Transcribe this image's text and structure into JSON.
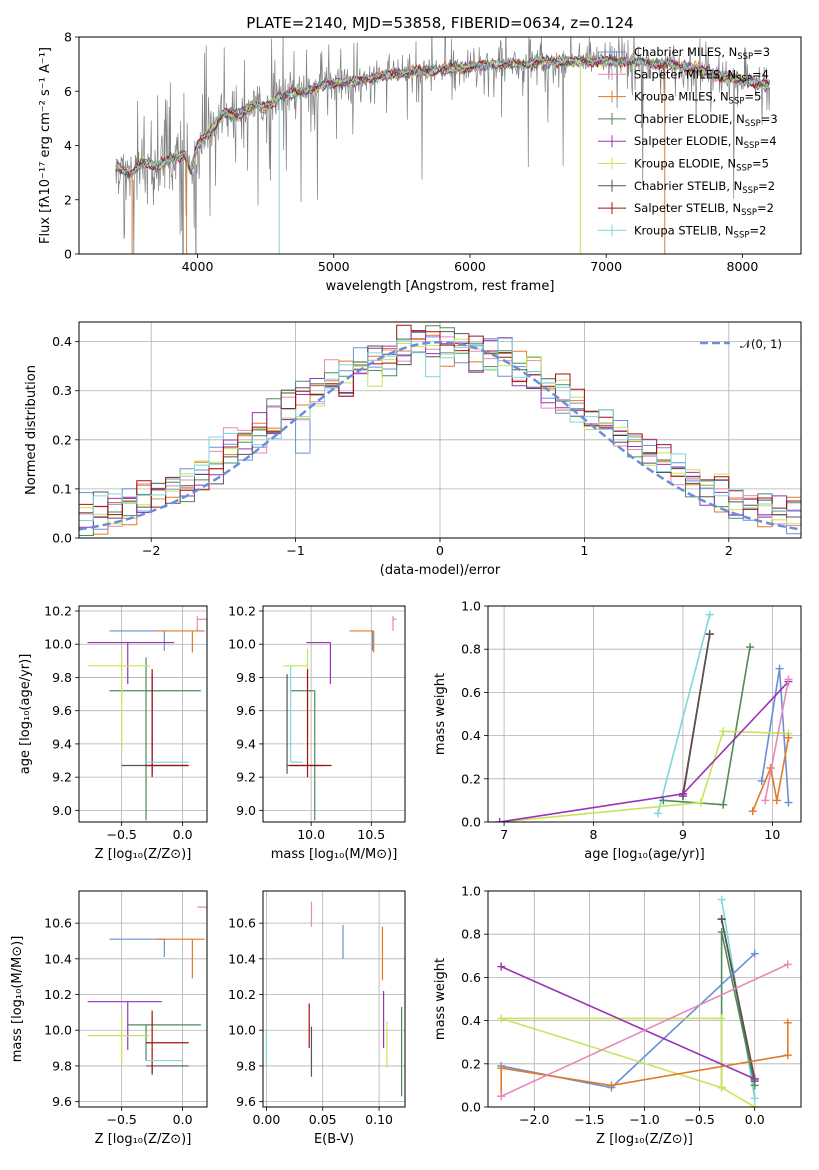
{
  "figure": {
    "title": "PLATE=2140, MJD=53858, FIBERID=0634, z=0.124"
  },
  "colors": {
    "gray": "#808080",
    "blue": "#6a8fd8",
    "orange": "#e07a2a",
    "green": "#4f8a5c",
    "purple": "#9932b8",
    "yellowgreen": "#c9e45a",
    "darkgray": "#555555",
    "darkred": "#a01010",
    "cyan": "#7fd6dc",
    "pink": "#e889b8"
  },
  "chart_data": [
    {
      "id": "spectrum",
      "type": "line",
      "xlabel": "wavelength [Angstrom, rest frame]",
      "ylabel": "Flux [fλ10⁻¹⁷ erg cm⁻² s⁻¹ A⁻¹]",
      "xlim": [
        3130,
        8430
      ],
      "ylim": [
        0,
        8
      ],
      "xticks": [
        "4000",
        "5000",
        "6000",
        "7000",
        "8000"
      ],
      "yticks": [
        "0",
        "2",
        "4",
        "6",
        "8"
      ],
      "legend_position": "top-right",
      "legend": [
        {
          "label": "Chabrier MILES, N",
          "sub": "SSP",
          "suffix": "=3",
          "color": "#6a8fd8"
        },
        {
          "label": "Salpeter MILES, N",
          "sub": "SSP",
          "suffix": "=4",
          "color": "#e889b8"
        },
        {
          "label": "Kroupa MILES, N",
          "sub": "SSP",
          "suffix": "=5",
          "color": "#e07a2a"
        },
        {
          "label": "Chabrier ELODIE, N",
          "sub": "SSP",
          "suffix": "=3",
          "color": "#4f8a5c"
        },
        {
          "label": "Salpeter ELODIE, N",
          "sub": "SSP",
          "suffix": "=4",
          "color": "#9932b8"
        },
        {
          "label": "Kroupa ELODIE, N",
          "sub": "SSP",
          "suffix": "=5",
          "color": "#c9e45a"
        },
        {
          "label": "Chabrier STELIB, N",
          "sub": "SSP",
          "suffix": "=2",
          "color": "#555555"
        },
        {
          "label": "Salpeter STELIB, N",
          "sub": "SSP",
          "suffix": "=2",
          "color": "#a01010"
        },
        {
          "label": "Kroupa STELIB, N",
          "sub": "SSP",
          "suffix": "=2",
          "color": "#7fd6dc"
        }
      ],
      "continuum": [
        [
          3400,
          3.3
        ],
        [
          3500,
          2.9
        ],
        [
          3600,
          3.4
        ],
        [
          3700,
          3.2
        ],
        [
          3800,
          3.5
        ],
        [
          3900,
          3.7
        ],
        [
          3950,
          3.0
        ],
        [
          4000,
          4.0
        ],
        [
          4100,
          4.6
        ],
        [
          4200,
          5.2
        ],
        [
          4300,
          5.1
        ],
        [
          4400,
          5.5
        ],
        [
          4500,
          5.4
        ],
        [
          4600,
          5.8
        ],
        [
          4700,
          5.9
        ],
        [
          4800,
          6.0
        ],
        [
          4900,
          6.2
        ],
        [
          5000,
          6.3
        ],
        [
          5200,
          6.4
        ],
        [
          5400,
          6.6
        ],
        [
          5600,
          6.7
        ],
        [
          5800,
          6.8
        ],
        [
          6000,
          6.9
        ],
        [
          6200,
          7.0
        ],
        [
          6400,
          7.0
        ],
        [
          6600,
          7.1
        ],
        [
          6800,
          7.1
        ],
        [
          7000,
          7.1
        ],
        [
          7200,
          7.1
        ],
        [
          7400,
          7.0
        ],
        [
          7600,
          6.9
        ],
        [
          7800,
          6.6
        ],
        [
          8000,
          6.4
        ],
        [
          8200,
          6.2
        ]
      ]
    },
    {
      "id": "residuals",
      "type": "histogram",
      "xlabel": "(data-model)/error",
      "ylabel": "Normed distribution",
      "xlim": [
        -2.5,
        2.5
      ],
      "ylim": [
        0,
        0.44
      ],
      "xticks": [
        "−2",
        "−1",
        "0",
        "1",
        "2"
      ],
      "yticks": [
        "0.0",
        "0.1",
        "0.2",
        "0.3",
        "0.4"
      ],
      "legend": [
        {
          "label": "𝒩(0, 1)",
          "color": "#6a8fd8",
          "style": "dashed"
        }
      ],
      "legend_position": "top-right",
      "bin_width": 0.1
    },
    {
      "id": "age_vs_Z",
      "type": "errorbar",
      "xlabel": "Z [log₁₀(Z/Z⊙)]",
      "ylabel": "age  [log₁₀(age/yr)]",
      "xlim": [
        -0.85,
        0.2
      ],
      "ylim": [
        8.93,
        10.23
      ],
      "xticks": [
        "−0.5",
        "0.0"
      ],
      "xtick_values": [
        -0.5,
        0.0
      ],
      "yticks": [
        "9.0",
        "9.2",
        "9.4",
        "9.6",
        "9.8",
        "10.0",
        "10.2"
      ],
      "points": [
        {
          "x": -0.15,
          "y": 10.08,
          "xerr": [
            0.45,
            0.0
          ],
          "yerr": [
            0.12,
            0.0
          ],
          "color": "#6a8fd8"
        },
        {
          "x": 0.12,
          "y": 10.15,
          "xerr": [
            0.0,
            0.08
          ],
          "yerr": [
            0.07,
            0.02
          ],
          "color": "#e889b8"
        },
        {
          "x": 0.08,
          "y": 10.08,
          "xerr": [
            0.3,
            0.1
          ],
          "yerr": [
            0.13,
            0.0
          ],
          "color": "#e07a2a"
        },
        {
          "x": -0.3,
          "y": 9.72,
          "xerr": [
            0.3,
            0.45
          ],
          "yerr": [
            0.78,
            0.2
          ],
          "color": "#4f8a5c"
        },
        {
          "x": -0.45,
          "y": 10.01,
          "xerr": [
            0.33,
            0.38
          ],
          "yerr": [
            0.25,
            0.0
          ],
          "color": "#9932b8"
        },
        {
          "x": -0.5,
          "y": 9.87,
          "xerr": [
            0.28,
            0.23
          ],
          "yerr": [
            0.5,
            0.08
          ],
          "color": "#c9e45a"
        },
        {
          "x": -0.25,
          "y": 9.27,
          "xerr": [
            0.25,
            0.3
          ],
          "yerr": [
            0.05,
            0.55
          ],
          "color": "#555555"
        },
        {
          "x": -0.25,
          "y": 9.27,
          "xerr": [
            0.05,
            0.3
          ],
          "yerr": [
            0.07,
            0.58
          ],
          "color": "#a01010"
        },
        {
          "x": -0.25,
          "y": 9.29,
          "xerr": [
            0.05,
            0.3
          ],
          "yerr": [
            0.0,
            0.0
          ],
          "color": "#7fd6dc"
        }
      ]
    },
    {
      "id": "age_vs_mass",
      "type": "errorbar",
      "xlabel": "mass [log₁₀(M/M⊙)]",
      "ylabel": "",
      "xlim": [
        9.6,
        10.78
      ],
      "ylim": [
        8.93,
        10.23
      ],
      "xticks": [
        "10.0",
        "10.5"
      ],
      "xtick_values": [
        10.0,
        10.5
      ],
      "yticks": [
        "9.0",
        "9.2",
        "9.4",
        "9.6",
        "9.8",
        "10.0",
        "10.2"
      ],
      "points": [
        {
          "x": 10.51,
          "y": 10.08,
          "xerr": [
            0.0,
            0.0
          ],
          "yerr": [
            0.12,
            0.0
          ],
          "color": "#6a8fd8"
        },
        {
          "x": 10.68,
          "y": 10.15,
          "xerr": [
            0.0,
            0.03
          ],
          "yerr": [
            0.07,
            0.02
          ],
          "color": "#e889b8"
        },
        {
          "x": 10.52,
          "y": 10.08,
          "xerr": [
            0.2,
            0.0
          ],
          "yerr": [
            0.13,
            0.0
          ],
          "color": "#e07a2a"
        },
        {
          "x": 10.03,
          "y": 9.72,
          "xerr": [
            0.2,
            0.0
          ],
          "yerr": [
            0.78,
            0.0
          ],
          "color": "#4f8a5c"
        },
        {
          "x": 10.16,
          "y": 10.01,
          "xerr": [
            0.2,
            0.0
          ],
          "yerr": [
            0.25,
            0.0
          ],
          "color": "#9932b8"
        },
        {
          "x": 9.97,
          "y": 9.87,
          "xerr": [
            0.2,
            0.0
          ],
          "yerr": [
            0.5,
            0.1
          ],
          "color": "#c9e45a"
        },
        {
          "x": 9.8,
          "y": 9.27,
          "xerr": [
            0.0,
            0.3
          ],
          "yerr": [
            0.05,
            0.55
          ],
          "color": "#555555"
        },
        {
          "x": 9.97,
          "y": 9.27,
          "xerr": [
            0.15,
            0.2
          ],
          "yerr": [
            0.07,
            0.58
          ],
          "color": "#a01010"
        },
        {
          "x": 9.83,
          "y": 9.29,
          "xerr": [
            0.0,
            0.1
          ],
          "yerr": [
            0.0,
            0.58
          ],
          "color": "#7fd6dc"
        }
      ]
    },
    {
      "id": "weight_vs_age",
      "type": "line",
      "xlabel": "age  [log₁₀(age/yr)]",
      "ylabel": "mass weight",
      "xlim": [
        6.82,
        10.32
      ],
      "ylim": [
        0,
        1.0
      ],
      "xticks": [
        "7",
        "8",
        "9",
        "10"
      ],
      "xtick_values": [
        7,
        8,
        9,
        10
      ],
      "yticks": [
        "0.0",
        "0.2",
        "0.4",
        "0.6",
        "0.8",
        "1.0"
      ],
      "series": [
        {
          "color": "#7fd6dc",
          "x": [
            8.72,
            9.3
          ],
          "y": [
            0.04,
            0.96
          ]
        },
        {
          "color": "#a01010",
          "x": [
            9.0,
            9.3
          ],
          "y": [
            0.13,
            0.87
          ]
        },
        {
          "color": "#555555",
          "x": [
            9.0,
            9.3
          ],
          "y": [
            0.12,
            0.87
          ]
        },
        {
          "color": "#4f8a5c",
          "x": [
            8.78,
            9.45,
            9.75
          ],
          "y": [
            0.1,
            0.08,
            0.81
          ]
        },
        {
          "color": "#6a8fd8",
          "x": [
            9.88,
            10.08,
            10.18
          ],
          "y": [
            0.19,
            0.71,
            0.09
          ]
        },
        {
          "color": "#c9e45a",
          "x": [
            6.95,
            9.2,
            9.45,
            10.18
          ],
          "y": [
            0.0,
            0.09,
            0.42,
            0.41
          ]
        },
        {
          "color": "#9932b8",
          "x": [
            6.95,
            9.0,
            10.18
          ],
          "y": [
            0.0,
            0.13,
            0.65
          ]
        },
        {
          "color": "#e07a2a",
          "x": [
            9.78,
            9.98,
            10.05,
            10.18
          ],
          "y": [
            0.05,
            0.25,
            0.1,
            0.39
          ]
        },
        {
          "color": "#e889b8",
          "x": [
            9.92,
            10.18
          ],
          "y": [
            0.1,
            0.66
          ]
        }
      ]
    },
    {
      "id": "mass_vs_Z",
      "type": "errorbar",
      "xlabel": "Z [log₁₀(Z/Z⊙)]",
      "ylabel": "mass [log₁₀(M/M⊙)]",
      "xlim": [
        -0.85,
        0.2
      ],
      "ylim": [
        9.57,
        10.78
      ],
      "xticks": [
        "−0.5",
        "0.0"
      ],
      "xtick_values": [
        -0.5,
        0.0
      ],
      "yticks": [
        "9.6",
        "9.8",
        "10.0",
        "10.2",
        "10.4",
        "10.6"
      ],
      "points": [
        {
          "x": -0.15,
          "y": 10.51,
          "xerr": [
            0.45,
            0.0
          ],
          "yerr": [
            0.1,
            0.0
          ],
          "color": "#6a8fd8"
        },
        {
          "x": 0.12,
          "y": 10.69,
          "xerr": [
            0.0,
            0.08
          ],
          "yerr": [
            0.0,
            0.0
          ],
          "color": "#e889b8"
        },
        {
          "x": 0.08,
          "y": 10.51,
          "xerr": [
            0.3,
            0.1
          ],
          "yerr": [
            0.22,
            0.0
          ],
          "color": "#e07a2a"
        },
        {
          "x": -0.3,
          "y": 10.03,
          "xerr": [
            0.15,
            0.45
          ],
          "yerr": [
            0.2,
            0.0
          ],
          "color": "#4f8a5c"
        },
        {
          "x": -0.45,
          "y": 10.16,
          "xerr": [
            0.33,
            0.28
          ],
          "yerr": [
            0.27,
            0.0
          ],
          "color": "#9932b8"
        },
        {
          "x": -0.5,
          "y": 9.97,
          "xerr": [
            0.28,
            0.23
          ],
          "yerr": [
            0.17,
            0.13
          ],
          "color": "#c9e45a"
        },
        {
          "x": -0.25,
          "y": 9.8,
          "xerr": [
            0.05,
            0.3
          ],
          "yerr": [
            0.05,
            0.0
          ],
          "color": "#555555"
        },
        {
          "x": -0.25,
          "y": 9.93,
          "xerr": [
            0.05,
            0.3
          ],
          "yerr": [
            0.17,
            0.18
          ],
          "color": "#a01010"
        },
        {
          "x": -0.25,
          "y": 9.83,
          "xerr": [
            0.05,
            0.25
          ],
          "yerr": [
            0.0,
            0.0
          ],
          "color": "#7fd6dc"
        }
      ]
    },
    {
      "id": "mass_vs_ebv",
      "type": "errorbar",
      "xlabel": "E(B-V)",
      "ylabel": "",
      "xlim": [
        -0.003,
        0.123
      ],
      "ylim": [
        9.57,
        10.78
      ],
      "xticks": [
        "0.00",
        "0.05",
        "0.10"
      ],
      "xtick_values": [
        0.0,
        0.05,
        0.1
      ],
      "yticks": [
        "9.6",
        "9.8",
        "10.0",
        "10.2",
        "10.4",
        "10.6"
      ],
      "points": [
        {
          "x": 0.0,
          "y": 9.9,
          "xerr": [
            0,
            0
          ],
          "yerr": [
            0.1,
            0.1
          ],
          "color": "#7fd6dc"
        },
        {
          "x": 0.04,
          "y": 10.65,
          "xerr": [
            0,
            0
          ],
          "yerr": [
            0.07,
            0.07
          ],
          "color": "#e889b8"
        },
        {
          "x": 0.068,
          "y": 10.5,
          "xerr": [
            0,
            0
          ],
          "yerr": [
            0.1,
            0.09
          ],
          "color": "#6a8fd8"
        },
        {
          "x": 0.038,
          "y": 10.03,
          "xerr": [
            0,
            0
          ],
          "yerr": [
            0.13,
            0.12
          ],
          "color": "#a01010"
        },
        {
          "x": 0.04,
          "y": 9.9,
          "xerr": [
            0,
            0
          ],
          "yerr": [
            0.16,
            0.12
          ],
          "color": "#555555"
        },
        {
          "x": 0.103,
          "y": 10.45,
          "xerr": [
            0,
            0
          ],
          "yerr": [
            0.17,
            0.13
          ],
          "color": "#e07a2a"
        },
        {
          "x": 0.104,
          "y": 10.05,
          "xerr": [
            0,
            0
          ],
          "yerr": [
            0.15,
            0.17
          ],
          "color": "#9932b8"
        },
        {
          "x": 0.107,
          "y": 9.95,
          "xerr": [
            0,
            0
          ],
          "yerr": [
            0.16,
            0.1
          ],
          "color": "#c9e45a"
        },
        {
          "x": 0.12,
          "y": 9.85,
          "xerr": [
            0,
            0
          ],
          "yerr": [
            0.22,
            0.28
          ],
          "color": "#4f8a5c"
        }
      ]
    },
    {
      "id": "weight_vs_Z",
      "type": "line",
      "xlabel": "Z [log₁₀(Z/Z⊙)]",
      "ylabel": "mass weight",
      "xlim": [
        -2.42,
        0.42
      ],
      "ylim": [
        0,
        1.0
      ],
      "xticks": [
        "−2.0",
        "−1.5",
        "−1.0",
        "−0.5",
        "0.0"
      ],
      "xtick_values": [
        -2.0,
        -1.5,
        -1.0,
        -0.5,
        0.0
      ],
      "yticks": [
        "0.0",
        "0.2",
        "0.4",
        "0.6",
        "0.8",
        "1.0"
      ],
      "series": [
        {
          "color": "#7fd6dc",
          "x": [
            0.0,
            -0.3
          ],
          "y": [
            0.04,
            0.96
          ]
        },
        {
          "color": "#a01010",
          "x": [
            0.0,
            -0.3
          ],
          "y": [
            0.13,
            0.87
          ]
        },
        {
          "color": "#555555",
          "x": [
            0.0,
            -0.3
          ],
          "y": [
            0.12,
            0.87
          ]
        },
        {
          "color": "#4f8a5c",
          "x": [
            -0.3,
            -0.3,
            0.0
          ],
          "y": [
            0.09,
            0.81,
            0.1
          ]
        },
        {
          "color": "#6a8fd8",
          "x": [
            -2.3,
            -1.3,
            0.0
          ],
          "y": [
            0.19,
            0.09,
            0.71
          ]
        },
        {
          "color": "#c9e45a",
          "x": [
            -0.3,
            -2.3,
            -0.3,
            -0.3,
            0.0
          ],
          "y": [
            0.09,
            0.41,
            0.41,
            0.09,
            0.0
          ]
        },
        {
          "color": "#9932b8",
          "x": [
            -2.3,
            0.0
          ],
          "y": [
            0.65,
            0.13
          ]
        },
        {
          "color": "#e07a2a",
          "x": [
            -2.3,
            -2.3,
            -1.3,
            0.3,
            0.3
          ],
          "y": [
            0.05,
            0.18,
            0.1,
            0.24,
            0.39
          ]
        },
        {
          "color": "#e889b8",
          "x": [
            -2.3,
            0.3
          ],
          "y": [
            0.05,
            0.66
          ]
        }
      ]
    }
  ]
}
